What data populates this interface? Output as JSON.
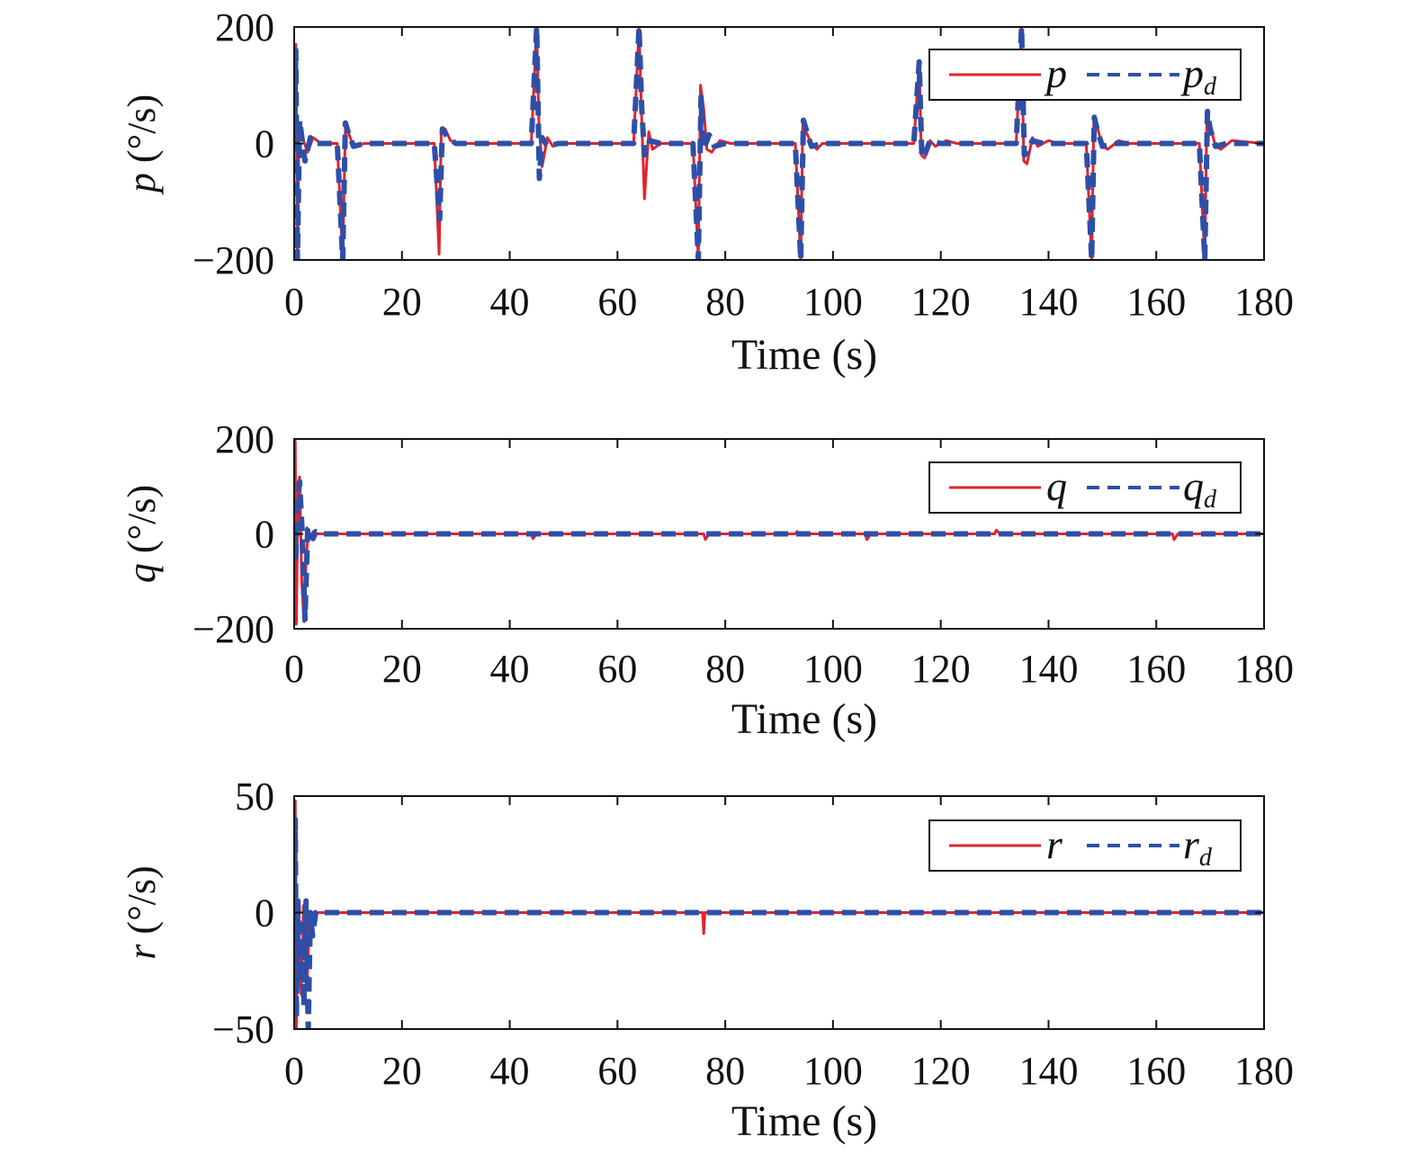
{
  "colors": {
    "actual": "#e0242e",
    "desired": "#2e4fa8",
    "axis": "#111111"
  },
  "chart_data": [
    {
      "type": "line",
      "ylabel_var": "p",
      "ylabel_unit": " (°/s)",
      "xlabel": "Time (s)",
      "xlim": [
        0,
        180
      ],
      "ylim": [
        -200,
        200
      ],
      "xticks": [
        "0",
        "20",
        "40",
        "60",
        "80",
        "100",
        "120",
        "140",
        "160",
        "180"
      ],
      "yticks": [
        {
          "v": 200,
          "label": "200"
        },
        {
          "v": 0,
          "label": "0"
        },
        {
          "v": -200,
          "label": "−200"
        }
      ],
      "legend": [
        {
          "name": "p",
          "sub": ""
        },
        {
          "name": "p",
          "sub": "d"
        }
      ],
      "series": [
        {
          "name": "p",
          "style": "solid",
          "x": [
            0,
            0.3,
            0.6,
            0.9,
            1.5,
            2.5,
            3.5,
            5,
            8,
            9,
            9.5,
            10,
            11,
            13,
            26,
            26.9,
            27.3,
            28,
            29,
            31,
            44,
            45,
            45.4,
            46,
            47,
            48,
            49,
            52,
            63,
            64,
            64.5,
            65,
            65.8,
            66.5,
            68,
            70,
            74,
            75,
            75.4,
            76,
            76.6,
            77.5,
            79,
            81,
            93,
            94,
            94.4,
            95,
            96,
            97,
            98,
            101,
            115,
            116,
            116.4,
            117,
            118,
            119,
            121,
            123,
            134,
            135,
            135.4,
            136,
            137,
            138,
            140,
            142,
            147,
            148,
            148.4,
            149,
            150,
            151,
            153,
            155,
            168,
            169,
            169.4,
            170,
            171,
            172,
            174,
            180
          ],
          "y": [
            0,
            170,
            -200,
            30,
            10,
            -15,
            10,
            0,
            0,
            -200,
            30,
            20,
            -5,
            0,
            0,
            -190,
            20,
            25,
            5,
            0,
            0,
            200,
            40,
            -40,
            10,
            -5,
            0,
            0,
            0,
            200,
            40,
            -95,
            20,
            -10,
            0,
            0,
            0,
            -200,
            100,
            60,
            -10,
            -15,
            5,
            0,
            0,
            -200,
            40,
            20,
            0,
            -10,
            0,
            0,
            0,
            140,
            -20,
            -25,
            5,
            -5,
            5,
            0,
            0,
            200,
            -30,
            -35,
            10,
            -5,
            5,
            0,
            0,
            -200,
            40,
            30,
            -5,
            -10,
            5,
            0,
            0,
            -200,
            50,
            30,
            -5,
            -10,
            5,
            0
          ]
        },
        {
          "name": "p_d",
          "style": "dashed",
          "x": [
            0,
            0.3,
            0.6,
            1,
            2,
            3,
            4,
            8,
            9,
            9.5,
            10,
            11,
            13,
            26,
            27,
            27.5,
            28.5,
            30,
            44,
            45,
            45.5,
            46,
            47,
            49,
            63,
            64,
            64.5,
            65,
            66,
            68,
            74,
            75,
            75.5,
            76,
            77,
            78,
            80,
            93,
            94,
            94.5,
            95,
            96,
            98,
            115,
            116,
            116.5,
            117,
            118,
            120,
            134,
            135,
            135.5,
            136,
            137,
            139,
            147,
            148,
            148.5,
            149,
            150,
            152,
            168,
            169,
            169.5,
            170,
            171,
            173,
            180
          ],
          "y": [
            0,
            160,
            -200,
            40,
            -30,
            10,
            0,
            0,
            -200,
            35,
            20,
            -5,
            0,
            0,
            -130,
            25,
            10,
            0,
            0,
            200,
            -60,
            10,
            -5,
            0,
            0,
            200,
            60,
            -20,
            5,
            0,
            0,
            -200,
            80,
            -10,
            15,
            -5,
            0,
            0,
            -200,
            40,
            25,
            -5,
            0,
            0,
            140,
            -25,
            -20,
            5,
            0,
            0,
            200,
            -20,
            -15,
            5,
            0,
            0,
            -200,
            45,
            25,
            -5,
            0,
            0,
            -200,
            55,
            25,
            -5,
            0,
            0
          ]
        }
      ]
    },
    {
      "type": "line",
      "ylabel_var": "q",
      "ylabel_unit": " (°/s)",
      "xlabel": "Time (s)",
      "xlim": [
        0,
        180
      ],
      "ylim": [
        -200,
        200
      ],
      "xticks": [
        "0",
        "20",
        "40",
        "60",
        "80",
        "100",
        "120",
        "140",
        "160",
        "180"
      ],
      "yticks": [
        {
          "v": 200,
          "label": "200"
        },
        {
          "v": 0,
          "label": "0"
        },
        {
          "v": -200,
          "label": "−200"
        }
      ],
      "legend": [
        {
          "name": "q",
          "sub": ""
        },
        {
          "name": "q",
          "sub": "d"
        }
      ],
      "series": [
        {
          "name": "q",
          "style": "solid",
          "x": [
            0,
            0.2,
            0.4,
            0.7,
            1,
            1.4,
            1.8,
            2.2,
            2.6,
            3,
            3.5,
            4,
            5,
            6,
            44,
            44.3,
            45,
            76,
            76.3,
            77,
            93,
            93.3,
            94,
            106,
            106.3,
            107,
            130,
            130.3,
            131,
            163,
            163.3,
            164,
            180
          ],
          "y": [
            0,
            195,
            -190,
            90,
            120,
            -100,
            -185,
            -60,
            10,
            -10,
            5,
            0,
            0,
            0,
            0,
            -10,
            0,
            0,
            -12,
            0,
            0,
            5,
            0,
            0,
            -12,
            0,
            0,
            8,
            0,
            0,
            -12,
            0,
            0
          ]
        },
        {
          "name": "q_d",
          "style": "dashed",
          "x": [
            0,
            0.3,
            0.6,
            1,
            1.5,
            2,
            2.5,
            3,
            3.5,
            4,
            5,
            180
          ],
          "y": [
            0,
            -50,
            60,
            110,
            0,
            -180,
            10,
            15,
            -10,
            5,
            0,
            0
          ]
        }
      ]
    },
    {
      "type": "line",
      "ylabel_var": "r",
      "ylabel_unit": " (°/s)",
      "xlabel": "Time (s)",
      "xlim": [
        0,
        180
      ],
      "ylim": [
        -50,
        50
      ],
      "xticks": [
        "0",
        "20",
        "40",
        "60",
        "80",
        "100",
        "120",
        "140",
        "160",
        "180"
      ],
      "yticks": [
        {
          "v": 50,
          "label": "50"
        },
        {
          "v": 0,
          "label": "0"
        },
        {
          "v": -50,
          "label": "−50"
        }
      ],
      "legend": [
        {
          "name": "r",
          "sub": ""
        },
        {
          "name": "r",
          "sub": "d"
        }
      ],
      "series": [
        {
          "name": "r",
          "style": "solid",
          "x": [
            0,
            0.2,
            0.4,
            0.7,
            1,
            1.3,
            1.7,
            2,
            2.4,
            2.8,
            3.2,
            3.6,
            4,
            5,
            75.8,
            76,
            76.2,
            180
          ],
          "y": [
            0,
            48,
            -50,
            5,
            -20,
            -35,
            3,
            -15,
            -30,
            -5,
            -2,
            0,
            0,
            0,
            0,
            -9,
            0,
            0
          ]
        },
        {
          "name": "r_d",
          "style": "dashed",
          "x": [
            0,
            0.2,
            0.4,
            0.7,
            1,
            1.4,
            1.8,
            2.2,
            2.6,
            3,
            3.4,
            4,
            5,
            180
          ],
          "y": [
            0,
            40,
            -45,
            5,
            -30,
            -5,
            -40,
            5,
            -50,
            0,
            -10,
            0,
            0,
            0
          ]
        }
      ]
    }
  ]
}
